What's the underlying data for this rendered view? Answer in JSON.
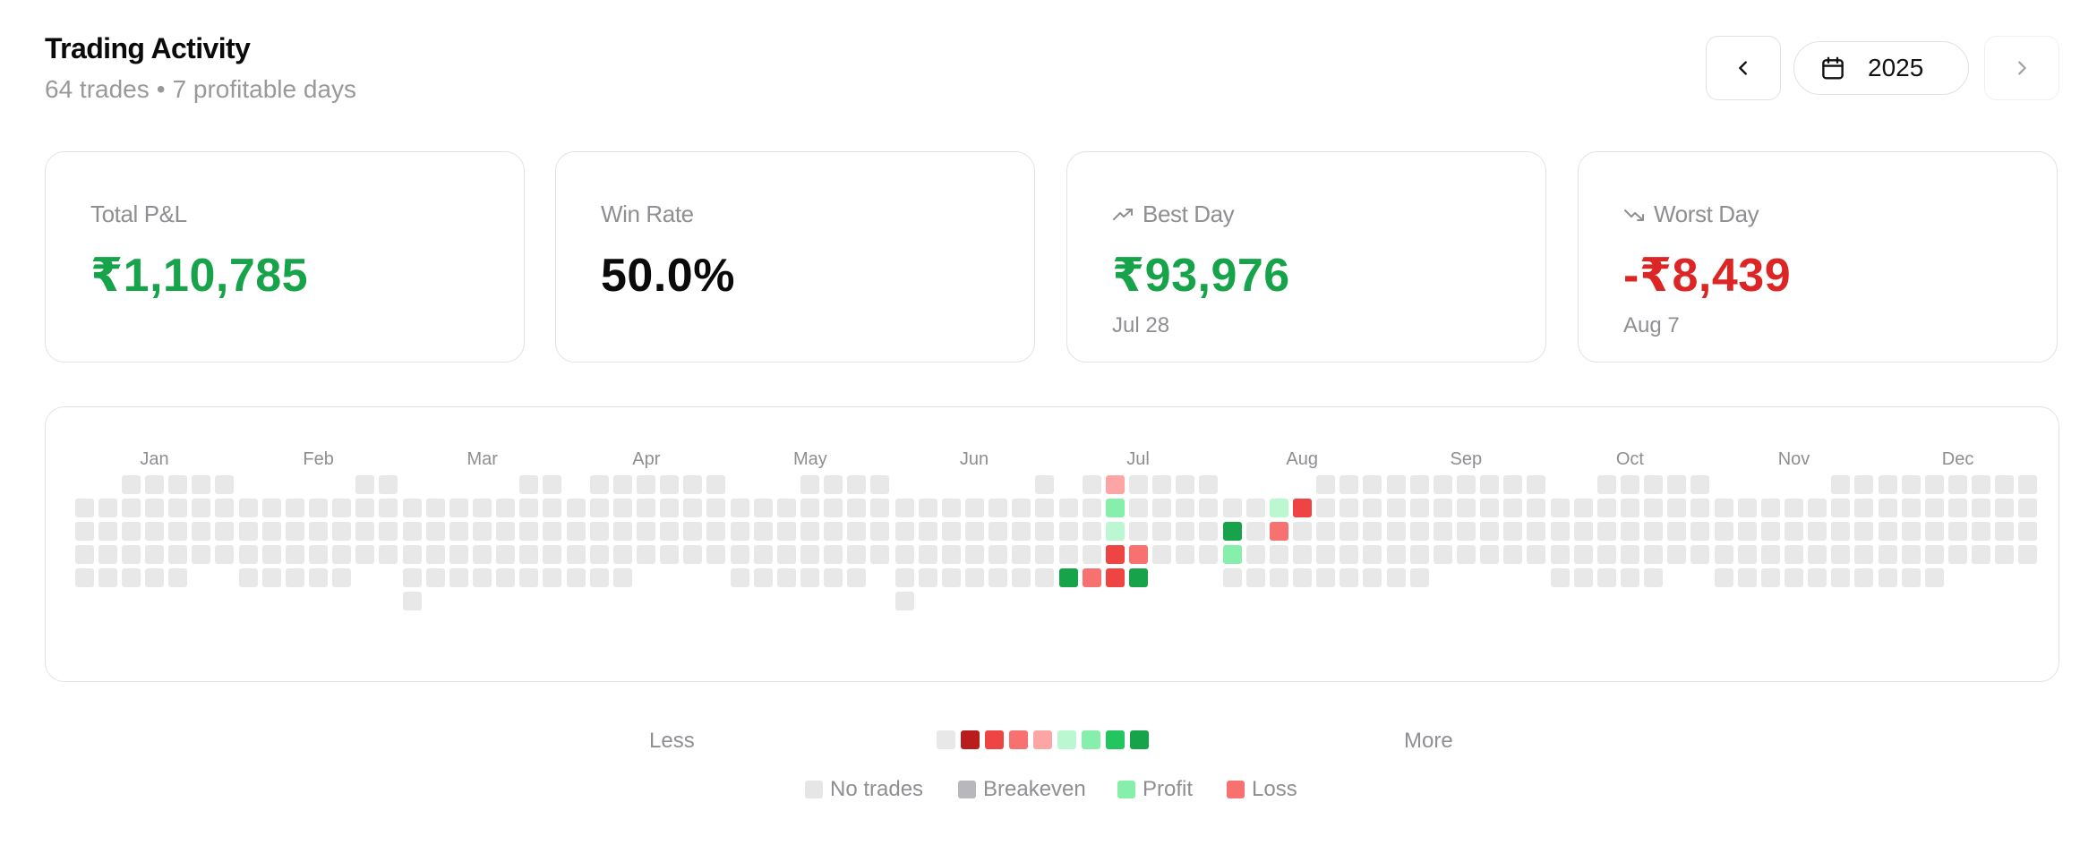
{
  "header": {
    "title": "Trading Activity",
    "trades": "64 trades",
    "separator": "•",
    "profitable_days": "7 profitable days"
  },
  "year_nav": {
    "prev_icon": "chevron-left-icon",
    "calendar_icon": "calendar-icon",
    "year": "2025",
    "next_icon": "chevron-right-icon"
  },
  "stats": {
    "total_pnl": {
      "label": "Total P&L",
      "value": "₹1,10,785",
      "color": "#16a34a"
    },
    "win_rate": {
      "label": "Win Rate",
      "value": "50.0%",
      "color": "#0a0a0a"
    },
    "best_day": {
      "label": "Best Day",
      "value": "₹93,976",
      "date": "Jul 28",
      "icon": "trending-up-icon",
      "color": "#16a34a"
    },
    "worst_day": {
      "label": "Worst Day",
      "value": "-₹8,439",
      "date": "Aug 7",
      "icon": "trending-down-icon",
      "color": "#dc2626"
    }
  },
  "heatmap": {
    "months": [
      "Jan",
      "Feb",
      "Mar",
      "Apr",
      "May",
      "Jun",
      "Jul",
      "Aug",
      "Sep",
      "Oct",
      "Nov",
      "Dec"
    ],
    "colors": {
      "none": "#e8e8e8",
      "loss_high": "#b91c1c",
      "loss_mid": "#ef4444",
      "loss_low": "#f87171",
      "loss_faint": "#fca5a5",
      "profit_faint": "#bbf7d0",
      "profit_low": "#86efac",
      "profit_mid": "#22c55e",
      "profit_high": "#16a34a"
    },
    "active_days": [
      {
        "date": "2025-07-02",
        "level": "loss_faint"
      },
      {
        "date": "2025-07-09",
        "level": "profit_low"
      },
      {
        "date": "2025-07-16",
        "level": "profit_faint"
      },
      {
        "date": "2025-07-23",
        "level": "loss_mid"
      },
      {
        "date": "2025-07-24",
        "level": "loss_low"
      },
      {
        "date": "2025-07-28",
        "level": "profit_high"
      },
      {
        "date": "2025-07-29",
        "level": "loss_low"
      },
      {
        "date": "2025-07-30",
        "level": "loss_mid"
      },
      {
        "date": "2025-07-31",
        "level": "profit_high"
      },
      {
        "date": "2025-08-06",
        "level": "profit_faint"
      },
      {
        "date": "2025-08-07",
        "level": "loss_mid"
      },
      {
        "date": "2025-08-11",
        "level": "profit_high"
      },
      {
        "date": "2025-08-13",
        "level": "loss_low"
      },
      {
        "date": "2025-08-18",
        "level": "profit_low"
      }
    ]
  },
  "legend": {
    "less": "Less",
    "more": "More",
    "scale": [
      "none",
      "loss_high",
      "loss_mid",
      "loss_low",
      "loss_faint",
      "profit_faint",
      "profit_low",
      "profit_mid",
      "profit_high"
    ],
    "keys": [
      {
        "label": "No trades",
        "color": "#e6e6e6"
      },
      {
        "label": "Breakeven",
        "color": "#b8b8bc"
      },
      {
        "label": "Profit",
        "color": "#86efac"
      },
      {
        "label": "Loss",
        "color": "#f87171"
      }
    ]
  }
}
